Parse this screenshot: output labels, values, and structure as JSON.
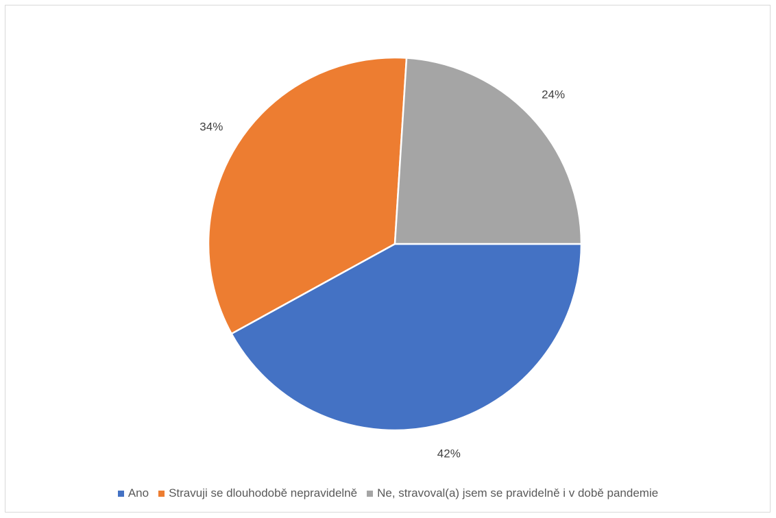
{
  "chart_data": {
    "type": "pie",
    "title": "",
    "categories": [
      "Ano",
      "Stravuji se dlouhodobě nepravidelně",
      "Ne, stravoval(a) jsem se pravidelně i v době pandemie"
    ],
    "values": [
      42,
      34,
      24
    ],
    "labels": [
      "42%",
      "34%",
      "24%"
    ],
    "colors": [
      "#4472C4",
      "#ED7D31",
      "#A5A5A5"
    ],
    "legend_position": "bottom",
    "start_angle_deg": 90,
    "direction": "clockwise"
  }
}
